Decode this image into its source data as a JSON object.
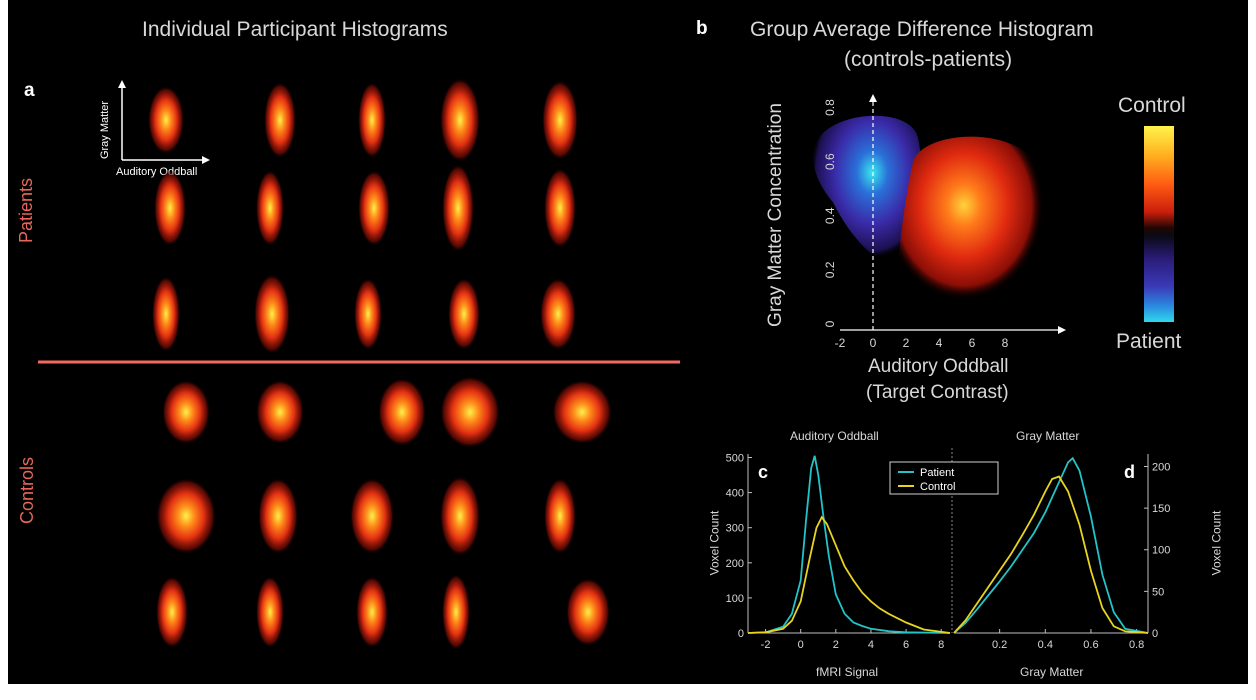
{
  "panel_a": {
    "letter": "a",
    "title": "Individual Participant Histograms",
    "inset_ylabel": "Gray Matter",
    "inset_xlabel": "Auditory Oddball",
    "group_patients": "Patients",
    "group_controls": "Controls"
  },
  "panel_b": {
    "letter": "b",
    "title_line1": "Group Average Difference Histogram",
    "title_line2": "(controls-patients)",
    "colorbar_top": "Control",
    "colorbar_bottom": "Patient"
  },
  "panel_c": {
    "letter": "c",
    "top_label": "Auditory Oddball"
  },
  "panel_d": {
    "letter": "d",
    "top_label": "Gray Matter"
  },
  "colors": {
    "patient": "#22c4c8",
    "control": "#e8d420",
    "separator": "#f06a60",
    "background": "#000000"
  },
  "chart_data": [
    {
      "id": "b",
      "type": "heatmap",
      "xlabel_line1": "Auditory Oddball",
      "xlabel_line2": "(Target Contrast)",
      "ylabel": "Gray Matter Concentration",
      "xlim": [
        -2,
        10
      ],
      "ylim": [
        0,
        0.85
      ],
      "xticks": [
        "-2",
        "0",
        "2",
        "4",
        "6",
        "8"
      ],
      "yticks": [
        "0",
        "0.2",
        "0.4",
        "0.6",
        "0.8"
      ],
      "regions": [
        {
          "group": "Patient",
          "center_x": 0.8,
          "center_y": 0.5,
          "peak_x": 1.2,
          "peak_y": 0.55
        },
        {
          "group": "Control",
          "center_x": 4.3,
          "center_y": 0.38,
          "peak_x": 3.8,
          "peak_y": 0.45
        }
      ]
    },
    {
      "id": "c",
      "type": "line",
      "xlabel": "fMRI Signal",
      "ylabel": "Voxel Count",
      "xlim": [
        -3,
        8.5
      ],
      "ylim": [
        0,
        510
      ],
      "xticks": [
        "-2",
        "0",
        "2",
        "4",
        "6",
        "8"
      ],
      "yticks": [
        "0",
        "100",
        "200",
        "300",
        "400",
        "500"
      ],
      "series": [
        {
          "name": "Patient",
          "x": [
            -3,
            -2,
            -1,
            -0.5,
            0,
            0.3,
            0.6,
            0.8,
            1.0,
            1.3,
            1.6,
            2.0,
            2.5,
            3,
            3.5,
            4,
            5,
            6,
            8.5
          ],
          "y": [
            0,
            2,
            18,
            55,
            150,
            320,
            470,
            505,
            450,
            330,
            220,
            110,
            55,
            30,
            20,
            12,
            5,
            2,
            0
          ]
        },
        {
          "name": "Control",
          "x": [
            -3,
            -2,
            -1,
            -0.5,
            0,
            0.5,
            0.9,
            1.2,
            1.5,
            2.0,
            2.5,
            3,
            3.5,
            4,
            4.5,
            5,
            6,
            7,
            8.5
          ],
          "y": [
            0,
            2,
            12,
            35,
            90,
            210,
            300,
            330,
            310,
            250,
            190,
            150,
            115,
            90,
            70,
            55,
            30,
            10,
            0
          ]
        }
      ]
    },
    {
      "id": "d",
      "type": "line",
      "xlabel": "Gray Matter",
      "ylabel": "Voxel Count",
      "xlim": [
        0,
        0.85
      ],
      "ylim": [
        0,
        215
      ],
      "xticks": [
        "0.2",
        "0.4",
        "0.6",
        "0.8"
      ],
      "yticks": [
        "0",
        "50",
        "100",
        "150",
        "200"
      ],
      "legend": [
        "Patient",
        "Control"
      ],
      "legend_position": "top-left",
      "series": [
        {
          "name": "Patient",
          "x": [
            0,
            0.05,
            0.1,
            0.15,
            0.2,
            0.25,
            0.3,
            0.35,
            0.4,
            0.45,
            0.5,
            0.52,
            0.55,
            0.6,
            0.65,
            0.7,
            0.75,
            0.85
          ],
          "y": [
            0,
            12,
            28,
            45,
            62,
            80,
            100,
            120,
            145,
            175,
            205,
            210,
            195,
            140,
            70,
            25,
            5,
            0
          ]
        },
        {
          "name": "Control",
          "x": [
            0,
            0.05,
            0.1,
            0.15,
            0.2,
            0.25,
            0.3,
            0.35,
            0.4,
            0.43,
            0.46,
            0.5,
            0.55,
            0.6,
            0.65,
            0.7,
            0.75,
            0.85
          ],
          "y": [
            0,
            15,
            35,
            55,
            75,
            95,
            118,
            142,
            170,
            185,
            188,
            170,
            130,
            75,
            30,
            8,
            2,
            0
          ]
        }
      ]
    }
  ]
}
